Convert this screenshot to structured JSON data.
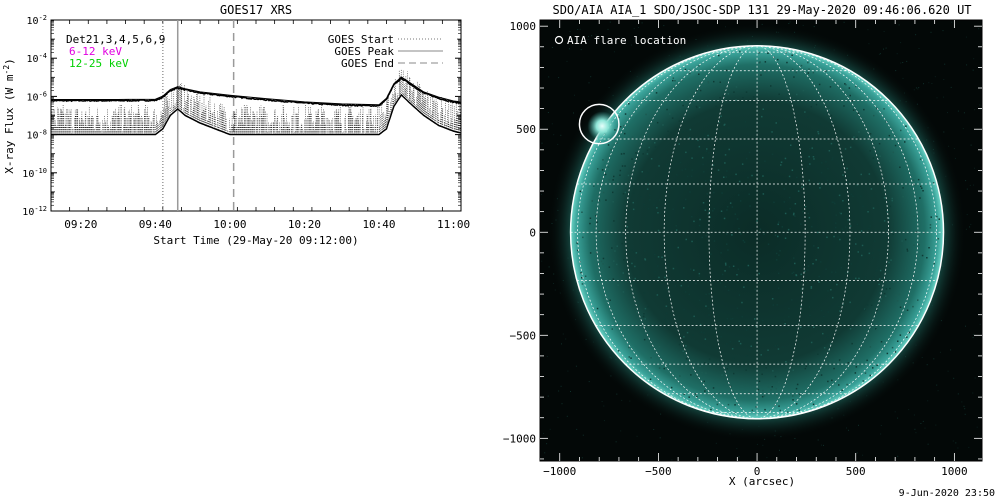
{
  "chart_data": [
    {
      "type": "line",
      "title": "GOES17 XRS",
      "xlabel": "Start Time (29-May-20 09:12:00)",
      "ylabel": "X-ray Flux (W m",
      "ylabel_sup": "-2",
      "ylabel_end": ")",
      "x_range": [
        "09:12",
        "11:02"
      ],
      "x_ticks": [
        "09:20",
        "09:40",
        "10:00",
        "10:20",
        "10:40",
        "11:00"
      ],
      "y_scale": "log",
      "y_range": [
        1e-12,
        0.01
      ],
      "y_ticks": [
        {
          "value": 0.01,
          "base": "10",
          "exp": "-2"
        },
        {
          "value": 0.0001,
          "base": "10",
          "exp": "-4"
        },
        {
          "value": 1e-06,
          "base": "10",
          "exp": "-6"
        },
        {
          "value": 1e-08,
          "base": "10",
          "exp": "-8"
        },
        {
          "value": 1e-10,
          "base": "10",
          "exp": "-10"
        },
        {
          "value": 1e-12,
          "base": "10",
          "exp": "-12"
        }
      ],
      "annotations": [
        {
          "text": "Det21,3,4,5,6,9",
          "color": "#000000"
        },
        {
          "text": "6-12 keV",
          "color": "#e000e0"
        },
        {
          "text": "12-25 keV",
          "color": "#00d000"
        }
      ],
      "legend": {
        "placement": "top-right",
        "entries": [
          {
            "label": "GOES Start",
            "style": "dotted"
          },
          {
            "label": "GOES Peak",
            "style": "solid"
          },
          {
            "label": "GOES End",
            "style": "dashed"
          }
        ]
      },
      "markers": [
        {
          "name": "GOES Start",
          "time": "09:42",
          "style": "dotted"
        },
        {
          "name": "GOES Peak",
          "time": "09:46",
          "style": "solid"
        },
        {
          "name": "GOES End",
          "time": "10:01",
          "style": "dashed"
        }
      ],
      "series": [
        {
          "name": "",
          "x": [
            "09:12",
            "09:30",
            "09:40",
            "09:42",
            "09:44",
            "09:46",
            "09:48",
            "09:52",
            "10:00",
            "10:10",
            "10:20",
            "10:30",
            "10:40",
            "10:42",
            "10:44",
            "10:46",
            "10:48",
            "10:52",
            "10:56",
            "11:00",
            "11:02"
          ],
          "y": [
            6e-07,
            6e-07,
            6.2e-07,
            9e-07,
            2e-06,
            2.8e-06,
            2.2e-06,
            1.5e-06,
            1e-06,
            6.5e-07,
            4.5e-07,
            3.5e-07,
            3.2e-07,
            7e-07,
            4e-06,
            9e-06,
            5e-06,
            1.5e-06,
            8e-07,
            5e-07,
            4.5e-07
          ]
        },
        {
          "name": "",
          "x": [
            "09:12",
            "09:30",
            "09:40",
            "09:42",
            "09:44",
            "09:46",
            "09:48",
            "09:52",
            "10:00",
            "10:10",
            "10:20",
            "10:30",
            "10:40",
            "10:42",
            "10:44",
            "10:46",
            "10:48",
            "10:52",
            "10:56",
            "11:00",
            "11:02"
          ],
          "y": [
            1e-08,
            1e-08,
            1e-08,
            2e-08,
            1e-07,
            2.2e-07,
            1e-07,
            4e-08,
            1e-08,
            1e-08,
            1e-08,
            1e-08,
            1e-08,
            2e-08,
            3e-07,
            1.2e-06,
            5e-07,
            1e-07,
            3e-08,
            1.5e-08,
            1.2e-08
          ]
        }
      ]
    },
    {
      "type": "scatter",
      "title": "SDO/AIA AIA_1 SDO/JSOC-SDP 131 29-May-2020 09:46:06.620 UT",
      "xlabel": "X (arcsec)",
      "ylabel": "",
      "xlim": [
        -1100,
        1140
      ],
      "ylim": [
        -1110,
        1030
      ],
      "x_ticks": [
        -1000,
        -500,
        0,
        500,
        1000
      ],
      "y_ticks": [
        1000,
        500,
        0,
        -500,
        -1000
      ],
      "x_tick_labels": [
        "−1000",
        "−500",
        "0",
        "500",
        "1000"
      ],
      "y_tick_labels": [
        "1000",
        "500",
        "0",
        "−500",
        "−1000"
      ],
      "solar_radius_arcsec": 945,
      "grid": "heliographic, 15 degree spacing",
      "legend_label": "AIA flare location",
      "flare": {
        "x": -800,
        "y": 525,
        "radius": 100
      },
      "colors": {
        "disk_bright": "#3aa39a",
        "disk_dark": "#0a2823",
        "limb": "#9ce6d8",
        "background": "#030807"
      }
    }
  ],
  "footer": {
    "timestamp": "9-Jun-2020 23:50"
  }
}
